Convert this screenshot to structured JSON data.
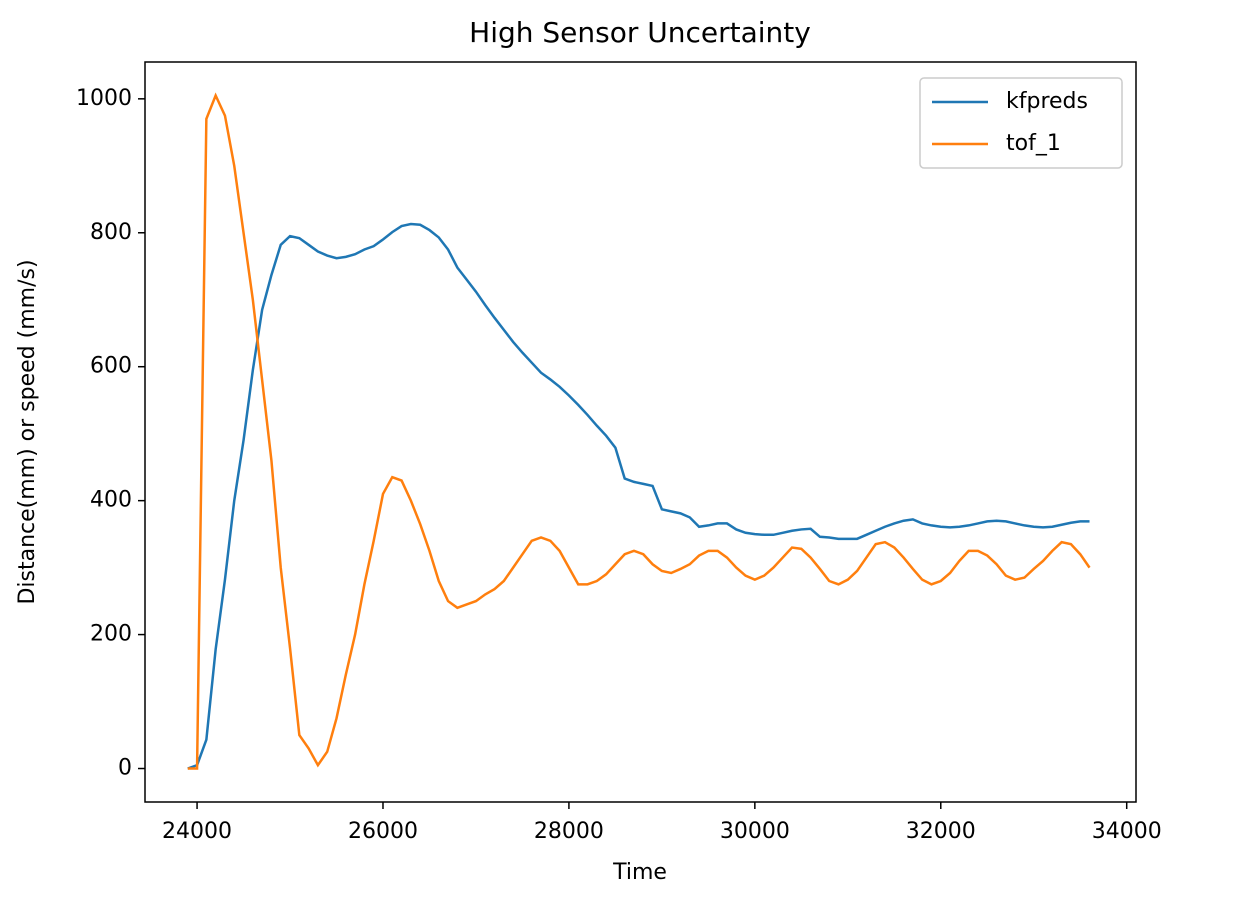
{
  "chart_data": {
    "type": "line",
    "title": "High Sensor Uncertainty",
    "x_label": "Time",
    "y_label": "Distance(mm) or speed (mm/s)",
    "x": [
      23900,
      24000,
      24100,
      24200,
      24300,
      24400,
      24500,
      24600,
      24700,
      24800,
      24900,
      25000,
      25100,
      25200,
      25300,
      25400,
      25500,
      25600,
      25700,
      25800,
      25900,
      26000,
      26100,
      26200,
      26300,
      26400,
      26500,
      26600,
      26700,
      26800,
      26900,
      27000,
      27100,
      27200,
      27300,
      27400,
      27500,
      27600,
      27700,
      27800,
      27900,
      28000,
      28100,
      28200,
      28300,
      28400,
      28500,
      28600,
      28700,
      28800,
      28900,
      29000,
      29100,
      29200,
      29300,
      29400,
      29500,
      29600,
      29700,
      29800,
      29900,
      30000,
      30100,
      30200,
      30300,
      30400,
      30500,
      30600,
      30700,
      30800,
      30900,
      31000,
      31100,
      31200,
      31300,
      31400,
      31500,
      31600,
      31700,
      31800,
      31900,
      32000,
      32100,
      32200,
      32300,
      32400,
      32500,
      32600,
      32700,
      32800,
      32900,
      33000,
      33100,
      33200,
      33300,
      33400,
      33500,
      33600
    ],
    "series": [
      {
        "name": "kfpreds",
        "color": "#1f77b4",
        "values": [
          0,
          5,
          43,
          178,
          282,
          400,
          490,
          595,
          685,
          737,
          782,
          795,
          792,
          782,
          772,
          766,
          762,
          764,
          768,
          775,
          780,
          790,
          801,
          810,
          813,
          812,
          804,
          793,
          775,
          748,
          730,
          712,
          692,
          673,
          655,
          637,
          621,
          606,
          591,
          581,
          570,
          557,
          543,
          528,
          512,
          497,
          479,
          433,
          428,
          425,
          422,
          387,
          384,
          381,
          375,
          361,
          363,
          366,
          366,
          357,
          352,
          350,
          349,
          349,
          352,
          355,
          357,
          358,
          346,
          345,
          343,
          343,
          343,
          349,
          355,
          361,
          366,
          370,
          372,
          366,
          363,
          361,
          360,
          361,
          363,
          366,
          369,
          370,
          369,
          366,
          363,
          361,
          360,
          361,
          364,
          367,
          369,
          369
        ]
      },
      {
        "name": "tof_1",
        "color": "#ff7f0e",
        "values": [
          0,
          0,
          970,
          1005,
          975,
          900,
          800,
          700,
          580,
          460,
          300,
          180,
          50,
          30,
          5,
          25,
          75,
          140,
          200,
          275,
          340,
          410,
          435,
          430,
          400,
          365,
          325,
          280,
          250,
          240,
          245,
          250,
          260,
          268,
          280,
          300,
          320,
          340,
          345,
          340,
          325,
          300,
          275,
          275,
          280,
          290,
          305,
          320,
          325,
          320,
          305,
          295,
          292,
          298,
          305,
          318,
          325,
          325,
          315,
          300,
          288,
          282,
          288,
          300,
          315,
          330,
          328,
          315,
          298,
          280,
          275,
          282,
          295,
          315,
          335,
          338,
          330,
          315,
          298,
          282,
          275,
          280,
          292,
          310,
          325,
          325,
          318,
          305,
          288,
          282,
          285,
          298,
          310,
          325,
          338,
          335,
          320,
          300
        ]
      }
    ],
    "xlim": [
      23440,
      34100
    ],
    "ylim": [
      -50,
      1055
    ],
    "xticks": [
      24000,
      26000,
      28000,
      30000,
      32000,
      34000
    ],
    "yticks": [
      0,
      200,
      400,
      600,
      800,
      1000
    ],
    "grid": false,
    "legend": "upper right"
  }
}
